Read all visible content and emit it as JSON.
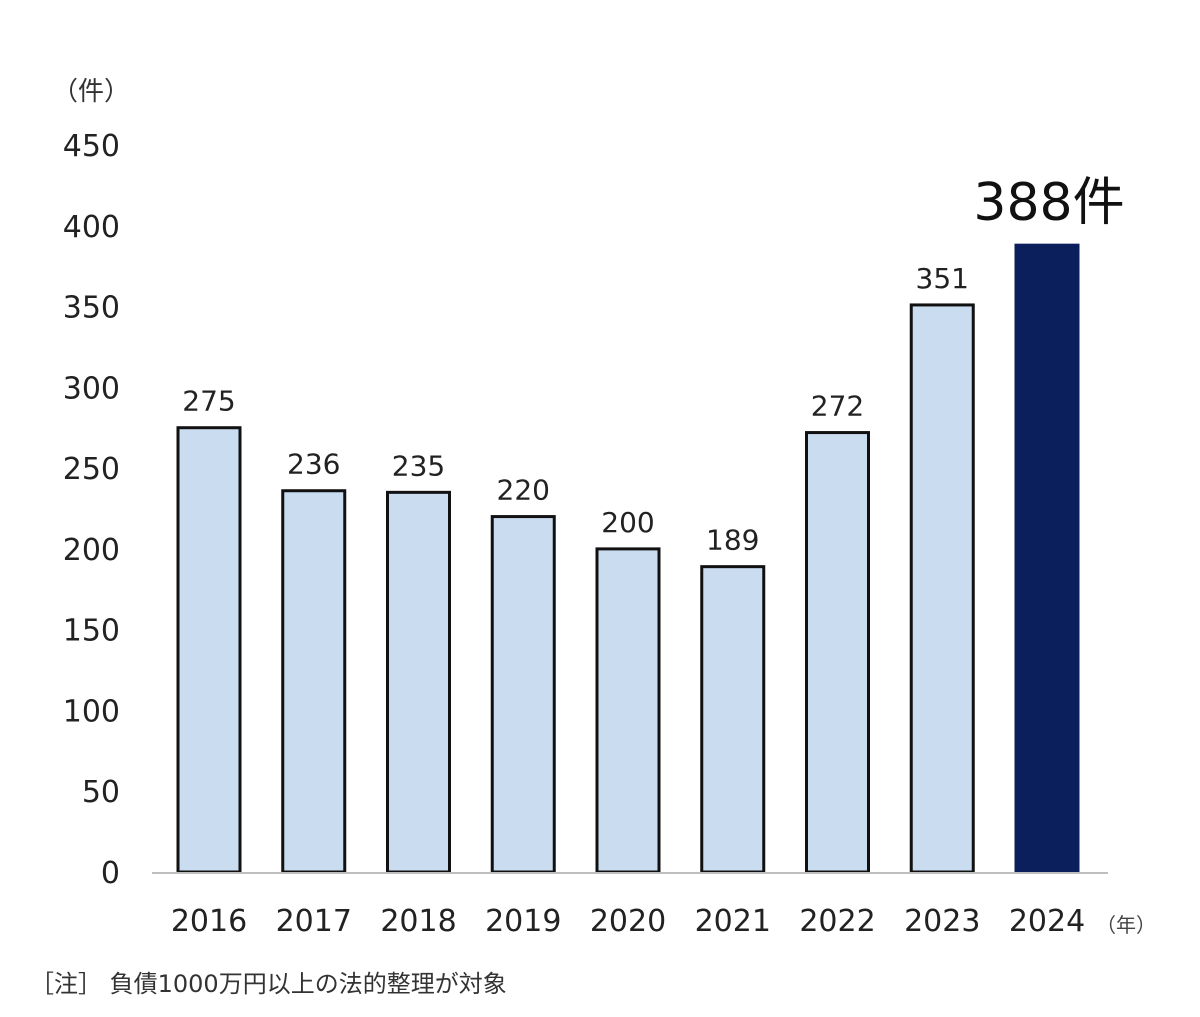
{
  "chart_data": {
    "type": "bar",
    "categories": [
      "2016",
      "2017",
      "2018",
      "2019",
      "2020",
      "2021",
      "2022",
      "2023",
      "2024"
    ],
    "values": [
      275,
      236,
      235,
      220,
      200,
      189,
      272,
      351,
      388
    ],
    "data_labels": [
      "275",
      "236",
      "235",
      "220",
      "200",
      "189",
      "272",
      "351",
      "388件"
    ],
    "ylabel": "（件）",
    "xlabel": "（年）",
    "ylim": [
      0,
      450
    ],
    "yticks": [
      0,
      50,
      100,
      150,
      200,
      250,
      300,
      350,
      400,
      450
    ],
    "grid": false,
    "highlight_index": 8
  },
  "note": "［注］ 負債1000万円以上の法的整理が対象",
  "colors": {
    "bar": "#c9dcf0",
    "bar_highlight": "#0b1f5c",
    "bar_stroke": "#111111",
    "axis": "#bfbfbf"
  }
}
